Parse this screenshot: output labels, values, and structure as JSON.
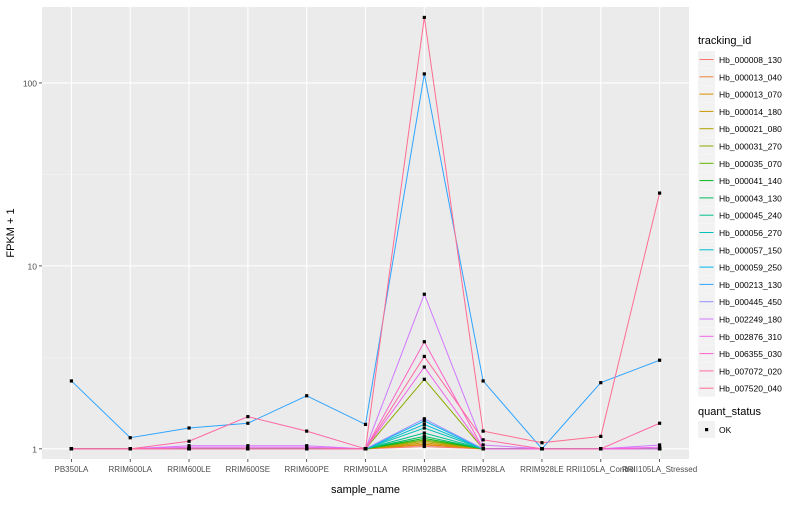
{
  "chart_data": {
    "type": "line",
    "y_scale": "log10",
    "xlabel": "sample_name",
    "ylabel": "FPKM + 1",
    "categories": [
      "PB350LA",
      "RRIM600LA",
      "RRIM600LE",
      "RRIM600SE",
      "RRIM600PE",
      "RRIM901LA",
      "RRIM928BA",
      "RRIM928LA",
      "RRIM928LE",
      "RRII105LA_Control",
      "RRII105LA_Stressed"
    ],
    "ylim": [
      0.88,
      260
    ],
    "y_ticks": [
      {
        "value": 1,
        "label": "1"
      },
      {
        "value": 10,
        "label": "10"
      },
      {
        "value": 100,
        "label": "100"
      }
    ],
    "legend": {
      "position": "right",
      "title": "tracking_id",
      "status_title": "quant_status",
      "status_items": [
        "OK"
      ]
    },
    "series": [
      {
        "name": "Hb_000008_130",
        "color": "#F8766D",
        "values": [
          1,
          1,
          1,
          1,
          1,
          1,
          1.03,
          1,
          1,
          1,
          1
        ]
      },
      {
        "name": "Hb_000013_040",
        "color": "#EC8239",
        "values": [
          1,
          1,
          1,
          1,
          1,
          1,
          1.05,
          1,
          1,
          1,
          1
        ]
      },
      {
        "name": "Hb_000013_070",
        "color": "#DB8E00",
        "values": [
          1,
          1,
          1,
          1,
          1,
          1,
          1.06,
          1,
          1,
          1,
          1
        ]
      },
      {
        "name": "Hb_000014_180",
        "color": "#C79800",
        "values": [
          1,
          1,
          1,
          1,
          1,
          1,
          1.08,
          1,
          1,
          1,
          1
        ]
      },
      {
        "name": "Hb_000021_080",
        "color": "#AEA200",
        "values": [
          1,
          1,
          1,
          1,
          1,
          1,
          1.1,
          1,
          1,
          1,
          1
        ]
      },
      {
        "name": "Hb_000031_270",
        "color": "#8FAA00",
        "values": [
          1,
          1,
          1,
          1,
          1,
          1,
          2.4,
          1,
          1,
          1,
          1
        ]
      },
      {
        "name": "Hb_000035_070",
        "color": "#64B200",
        "values": [
          1,
          1,
          1,
          1,
          1,
          1,
          1.12,
          1,
          1,
          1,
          1
        ]
      },
      {
        "name": "Hb_000041_140",
        "color": "#00B81B",
        "values": [
          1,
          1,
          1,
          1,
          1,
          1,
          1.14,
          1,
          1,
          1,
          1
        ]
      },
      {
        "name": "Hb_000043_130",
        "color": "#00BD5C",
        "values": [
          1,
          1,
          1,
          1,
          1,
          1,
          1.17,
          1,
          1,
          1,
          1
        ]
      },
      {
        "name": "Hb_000045_240",
        "color": "#00C08E",
        "values": [
          1,
          1,
          1,
          1,
          1,
          1,
          1.22,
          1,
          1,
          1,
          1
        ]
      },
      {
        "name": "Hb_000056_270",
        "color": "#00C1B7",
        "values": [
          1,
          1,
          1,
          1,
          1,
          1,
          1.3,
          1,
          1,
          1,
          1
        ]
      },
      {
        "name": "Hb_000057_150",
        "color": "#00BDD4",
        "values": [
          1,
          1,
          1,
          1,
          1,
          1,
          1.36,
          1,
          1,
          1,
          1
        ]
      },
      {
        "name": "Hb_000059_250",
        "color": "#00B5EE",
        "values": [
          1,
          1,
          1,
          1,
          1,
          1,
          1.42,
          1,
          1,
          1,
          1
        ]
      },
      {
        "name": "Hb_000213_130",
        "color": "#2FA4FF",
        "values": [
          2.35,
          1.15,
          1.3,
          1.38,
          1.95,
          1.36,
          112,
          2.35,
          1,
          2.3,
          3.05
        ]
      },
      {
        "name": "Hb_000445_450",
        "color": "#9590FF",
        "values": [
          1,
          1,
          1,
          1,
          1,
          1,
          1.46,
          1,
          1,
          1,
          1
        ]
      },
      {
        "name": "Hb_002249_180",
        "color": "#D177FF",
        "values": [
          1,
          1,
          1.04,
          1.04,
          1.04,
          1,
          7,
          1.05,
          1,
          1,
          1.05
        ]
      },
      {
        "name": "Hb_002876_310",
        "color": "#F066EA",
        "values": [
          1,
          1,
          1.02,
          1.02,
          1.02,
          1,
          2.8,
          1,
          1,
          1,
          1.02
        ]
      },
      {
        "name": "Hb_006355_030",
        "color": "#FC61C7",
        "values": [
          1,
          1,
          1,
          1,
          1,
          1,
          3.85,
          1,
          1,
          1,
          1
        ]
      },
      {
        "name": "Hb_007072_020",
        "color": "#FF67A4",
        "values": [
          1,
          1,
          1.1,
          1.5,
          1.25,
          1,
          3.2,
          1.12,
          1,
          1,
          1.38
        ]
      },
      {
        "name": "Hb_007520_040",
        "color": "#FF6C91",
        "values": [
          1,
          1,
          1,
          1,
          1,
          1,
          228,
          1.25,
          1.08,
          1.17,
          25
        ]
      }
    ]
  }
}
